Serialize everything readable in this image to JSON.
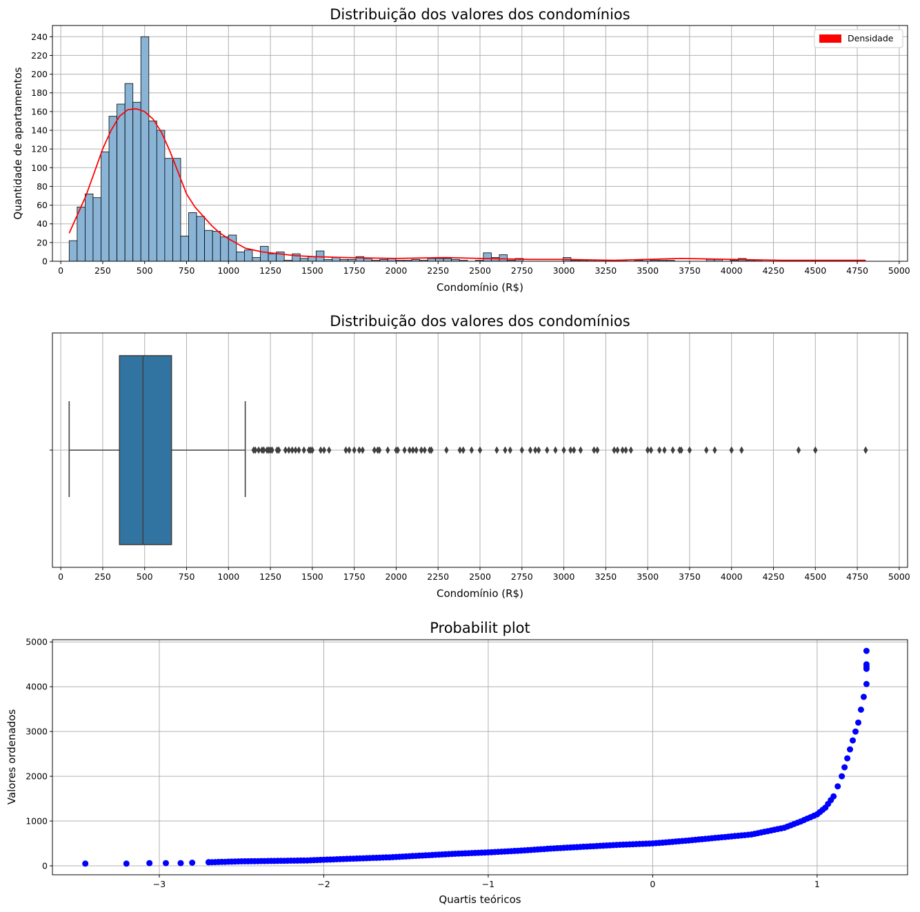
{
  "chart_data": [
    {
      "type": "bar",
      "title": "Distribuição dos valores dos condomínios",
      "xlabel": "Condomínio (R$)",
      "ylabel": "Quantidade de apartamentos",
      "xlim": [
        -50,
        5050
      ],
      "ylim": [
        0,
        252
      ],
      "xticks": [
        "0",
        "250",
        "500",
        "750",
        "1000",
        "1250",
        "1500",
        "1750",
        "2000",
        "2250",
        "2500",
        "2750",
        "3000",
        "3250",
        "3500",
        "3750",
        "4000",
        "4250",
        "4500",
        "4750",
        "5000"
      ],
      "yticks": [
        "0",
        "20",
        "40",
        "60",
        "80",
        "100",
        "120",
        "140",
        "160",
        "180",
        "200",
        "220",
        "240"
      ],
      "grid": true,
      "legend": {
        "placement": "top-right",
        "entries": [
          {
            "name": "Densidade",
            "color": "#ff0000"
          }
        ]
      },
      "colors": {
        "bars": "#89b4d6",
        "bar_edge": "#000000",
        "kde": "#ff0000"
      },
      "bin_start": 50,
      "bin_width": 47.5,
      "values": [
        22,
        58,
        72,
        68,
        117,
        155,
        168,
        190,
        170,
        240,
        150,
        140,
        110,
        110,
        27,
        52,
        48,
        33,
        32,
        26,
        28,
        10,
        12,
        4,
        16,
        8,
        10,
        1,
        8,
        3,
        5,
        11,
        2,
        4,
        2,
        2,
        5,
        3,
        1,
        2,
        3,
        1,
        1,
        2,
        1,
        3,
        3,
        3,
        2,
        1,
        0,
        1,
        9,
        4,
        7,
        1,
        3,
        0,
        0,
        0,
        0,
        0,
        4,
        1,
        1,
        1,
        1,
        1,
        1,
        1,
        0,
        1,
        2,
        1,
        1,
        1,
        0,
        0,
        0,
        0,
        2,
        2,
        0,
        1,
        3,
        1,
        1,
        0,
        0,
        0,
        1,
        0,
        0,
        0,
        0,
        0,
        0,
        0,
        0,
        0,
        0
      ],
      "density_curve": {
        "x": [
          50,
          100,
          150,
          200,
          250,
          300,
          350,
          400,
          450,
          500,
          550,
          600,
          650,
          700,
          750,
          800,
          850,
          900,
          950,
          1000,
          1100,
          1200,
          1300,
          1400,
          1500,
          1700,
          2000,
          2300,
          2500,
          2800,
          3000,
          3300,
          3500,
          3700,
          4000,
          4300,
          4500,
          4800
        ],
        "y": [
          30,
          50,
          70,
          95,
          120,
          140,
          155,
          162,
          163,
          160,
          152,
          138,
          118,
          95,
          72,
          58,
          48,
          38,
          30,
          24,
          14,
          10,
          8,
          6,
          5,
          4,
          3,
          4,
          3,
          2,
          2,
          1,
          2,
          3,
          2,
          1,
          1,
          1
        ]
      }
    },
    {
      "type": "boxplot",
      "title": "Distribuição dos valores dos condomínios",
      "xlabel": "Condomínio (R$)",
      "xlim": [
        -50,
        5050
      ],
      "xticks": [
        "0",
        "250",
        "500",
        "750",
        "1000",
        "1250",
        "1500",
        "1750",
        "2000",
        "2250",
        "2500",
        "2750",
        "3000",
        "3250",
        "3500",
        "3750",
        "4000",
        "4250",
        "4500",
        "4750",
        "5000"
      ],
      "grid": true,
      "colors": {
        "box": "#3274a1",
        "lines": "#3f3f3f"
      },
      "min": 50,
      "q1": 350,
      "median": 490,
      "q3": 660,
      "max": 1100,
      "outliers": [
        1150,
        1160,
        1180,
        1200,
        1210,
        1230,
        1240,
        1250,
        1260,
        1290,
        1300,
        1340,
        1360,
        1380,
        1400,
        1420,
        1450,
        1480,
        1490,
        1500,
        1550,
        1570,
        1600,
        1700,
        1720,
        1750,
        1780,
        1800,
        1870,
        1890,
        1900,
        1950,
        2000,
        2010,
        2050,
        2080,
        2100,
        2120,
        2150,
        2170,
        2200,
        2210,
        2300,
        2380,
        2400,
        2450,
        2500,
        2600,
        2650,
        2680,
        2750,
        2800,
        2830,
        2850,
        2900,
        2950,
        3000,
        3040,
        3060,
        3100,
        3180,
        3200,
        3300,
        3320,
        3350,
        3370,
        3400,
        3500,
        3520,
        3570,
        3600,
        3650,
        3690,
        3700,
        3750,
        3850,
        3900,
        4000,
        4060,
        4400,
        4500,
        4800
      ]
    },
    {
      "type": "scatter",
      "title": "Probabilit plot",
      "xlabel": "Quartis teóricos",
      "ylabel": "Valores ordenados",
      "xlim": [
        -3.65,
        1.55
      ],
      "ylim": [
        -200,
        5050
      ],
      "xticks": [
        "−3",
        "−2",
        "−1",
        "0",
        "1"
      ],
      "yticks": [
        "0",
        "1000",
        "2000",
        "3000",
        "4000",
        "5000"
      ],
      "grid": true,
      "colors": {
        "points": "#0000ff"
      },
      "anchors": {
        "x": [
          -3.45,
          -3.2,
          -3.06,
          -2.96,
          -2.87,
          -2.8,
          -2.7,
          -2.5,
          -2.3,
          -2.1,
          -1.9,
          -1.6,
          -1.4,
          -1.2,
          -1.0,
          -0.8,
          -0.6,
          -0.4,
          -0.2,
          0.0,
          0.2,
          0.4,
          0.6,
          0.8,
          0.9,
          1.0,
          1.05,
          1.1,
          1.15,
          1.2,
          1.25,
          1.3
        ],
        "y": [
          50,
          50,
          60,
          60,
          60,
          70,
          80,
          100,
          110,
          120,
          150,
          190,
          230,
          270,
          300,
          340,
          390,
          430,
          470,
          500,
          560,
          630,
          700,
          850,
          990,
          1150,
          1300,
          1550,
          2000,
          2600,
          3200,
          4060
        ]
      },
      "extra_points": {
        "x": [
          1.3,
          1.3,
          1.3,
          1.3
        ],
        "y": [
          4400,
          4450,
          4500,
          4800
        ]
      }
    }
  ]
}
